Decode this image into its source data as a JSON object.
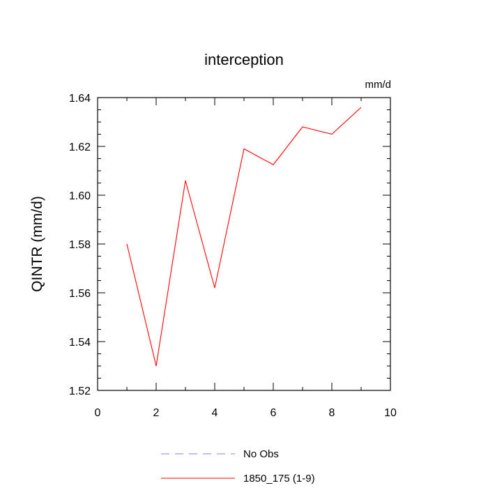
{
  "chart_data": {
    "type": "line",
    "title": "interception",
    "units_label": "mm/d",
    "ylabel": "QINTR  (mm/d)",
    "xlabel": "",
    "xlim": [
      0,
      10
    ],
    "ylim": [
      1.52,
      1.64
    ],
    "x_ticks": [
      0,
      2,
      4,
      6,
      8,
      10
    ],
    "x_tick_labels": [
      "0",
      "2",
      "4",
      "6",
      "8",
      "10"
    ],
    "y_ticks": [
      1.52,
      1.54,
      1.56,
      1.58,
      1.6,
      1.62,
      1.64
    ],
    "y_tick_labels": [
      "1.52",
      "1.54",
      "1.56",
      "1.58",
      "1.60",
      "1.62",
      "1.64"
    ],
    "grid": false,
    "legend_position": "bottom",
    "series": [
      {
        "name": "No Obs",
        "color": "#8080e0",
        "style": "dashed",
        "x": [],
        "values": []
      },
      {
        "name": "1850_175 (1-9)",
        "color": "#ff0000",
        "style": "solid",
        "x": [
          1,
          2,
          3,
          4,
          5,
          6,
          7,
          8,
          9
        ],
        "values": [
          1.58,
          1.53,
          1.606,
          1.562,
          1.619,
          1.6125,
          1.628,
          1.625,
          1.636
        ]
      }
    ]
  }
}
